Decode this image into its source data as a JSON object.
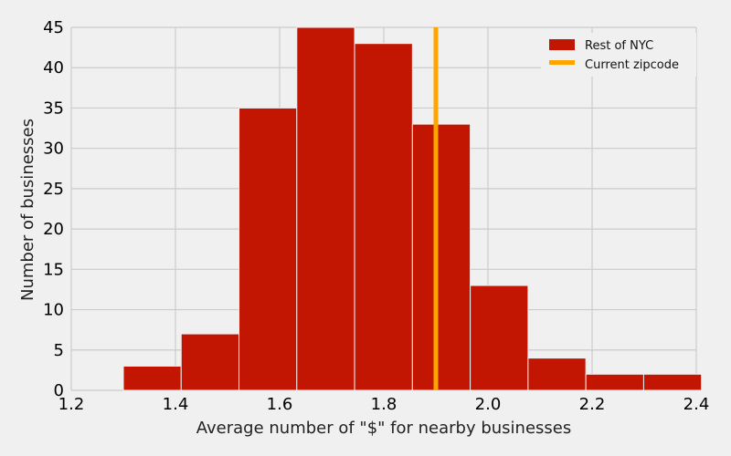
{
  "chart_data": {
    "type": "bar",
    "subtype": "histogram",
    "xlabel": "Average number of \"$\" for nearby businesses",
    "ylabel": "Number of businesses",
    "xlim": [
      1.2,
      2.4
    ],
    "ylim": [
      0,
      45
    ],
    "xticks": [
      "1.2",
      "1.4",
      "1.6",
      "1.8",
      "2.0",
      "2.2",
      "2.4"
    ],
    "yticks": [
      "0",
      "5",
      "10",
      "15",
      "20",
      "25",
      "30",
      "35",
      "40",
      "45"
    ],
    "grid": true,
    "legend_position": "top-right",
    "bin_edges": [
      1.3,
      1.411,
      1.522,
      1.633,
      1.744,
      1.855,
      1.966,
      2.077,
      2.188,
      2.299,
      2.41
    ],
    "series": [
      {
        "name": "Rest of NYC",
        "kind": "histogram",
        "color": "#c21502",
        "values": [
          3,
          7,
          35,
          45,
          43,
          33,
          13,
          4,
          2,
          2
        ]
      },
      {
        "name": "Current zipcode",
        "kind": "vertical-line",
        "color": "#ffa500",
        "x": 1.9
      }
    ]
  }
}
